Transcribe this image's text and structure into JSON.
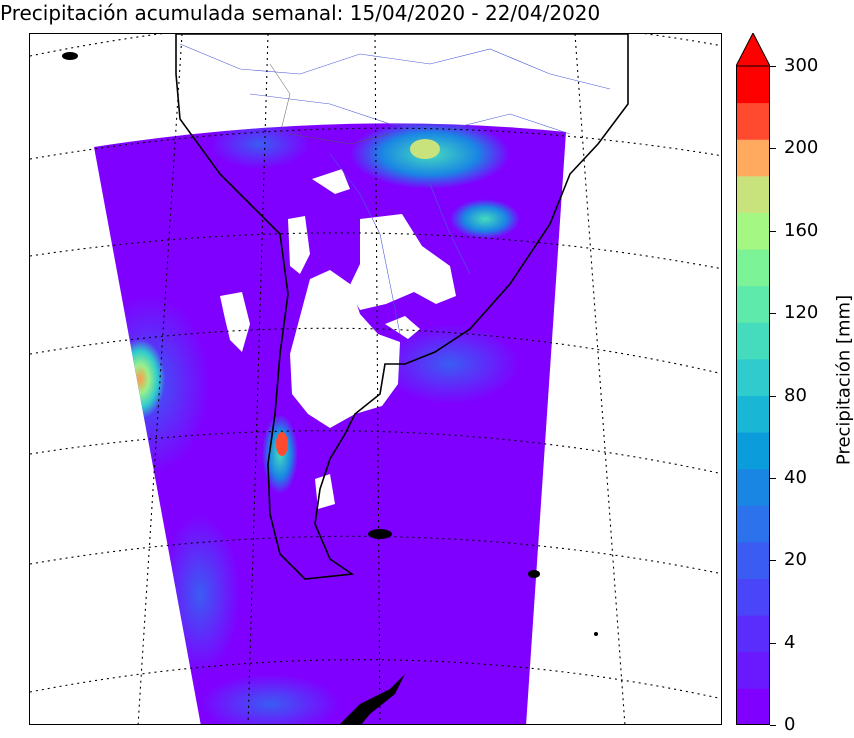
{
  "title": "Precipitación acumulada semanal: 15/04/2020 - 22/04/2020",
  "map": {
    "region": "South America",
    "projection": "conic",
    "gridlines": "dotted",
    "no_data_color": "#ffffff",
    "coastline_color": "#000000",
    "rivers_color": "#4a5bd8"
  },
  "colorbar": {
    "label": "Precipitación [mm]",
    "tick_labels": [
      "0",
      "4",
      "20",
      "40",
      "80",
      "120",
      "160",
      "200",
      "300"
    ],
    "extend": "max",
    "colors": [
      "#7f00ff",
      "#6a18fe",
      "#5a2dfc",
      "#4a45f8",
      "#3a5cf3",
      "#2b72ec",
      "#1a86e4",
      "#0b9ddb",
      "#19b6d6",
      "#2fcbcd",
      "#45dcbd",
      "#5eeaaa",
      "#7df398",
      "#a5f783",
      "#c8e27c",
      "#ffaa5f",
      "#ff4a2f",
      "#ff0000"
    ]
  }
}
